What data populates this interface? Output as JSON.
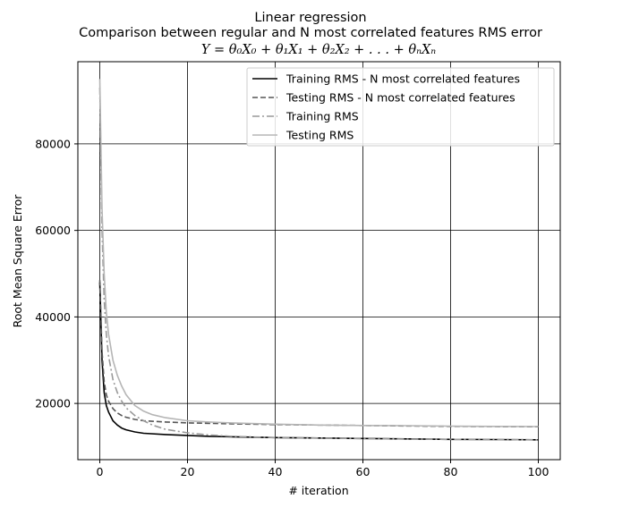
{
  "chart_data": {
    "type": "line",
    "title": "Linear regression",
    "subtitle": "Comparison between regular and N most correlated features RMS error",
    "equation": "Y = θ₀X₀ + θ₁X₁ + θ₂X₂ + . . . + θₙXₙ",
    "xlabel": "# iteration",
    "ylabel": "Root Mean Square Error",
    "xlim": [
      -5,
      105
    ],
    "ylim": [
      7000,
      99000
    ],
    "xticks": [
      0,
      20,
      40,
      60,
      80,
      100
    ],
    "yticks": [
      20000,
      40000,
      60000,
      80000
    ],
    "grid": true,
    "legend_position": "top-right",
    "series": [
      {
        "name": "Training RMS - N most correlated features",
        "color": "#000000",
        "dash": "solid",
        "x": [
          0,
          0.5,
          1,
          1.5,
          2,
          3,
          4,
          5,
          6,
          8,
          10,
          15,
          20,
          25,
          30,
          40,
          50,
          60,
          70,
          80,
          90,
          100
        ],
        "y": [
          48000,
          30000,
          22500,
          19500,
          18000,
          16000,
          15000,
          14300,
          13900,
          13400,
          13100,
          12800,
          12600,
          12400,
          12300,
          12100,
          12000,
          11900,
          11800,
          11700,
          11650,
          11600
        ]
      },
      {
        "name": "Testing RMS - N most correlated features",
        "color": "#555555",
        "dash": "dashed",
        "x": [
          0,
          0.5,
          1,
          1.5,
          2,
          3,
          4,
          5,
          6,
          8,
          10,
          15,
          20,
          25,
          30,
          40,
          50,
          60,
          70,
          80,
          90,
          100
        ],
        "y": [
          48500,
          32000,
          25000,
          22000,
          20500,
          18800,
          17800,
          17200,
          16800,
          16300,
          16000,
          15700,
          15500,
          15400,
          15300,
          15100,
          15000,
          14900,
          14800,
          14700,
          14650,
          14600
        ]
      },
      {
        "name": "Training RMS",
        "color": "#999999",
        "dash": "dashdot",
        "x": [
          0,
          0.5,
          1,
          1.5,
          2,
          3,
          4,
          5,
          6,
          8,
          10,
          12,
          15,
          20,
          25,
          30,
          40,
          50,
          60,
          70,
          80,
          90,
          100
        ],
        "y": [
          93000,
          60000,
          44000,
          36000,
          31000,
          25500,
          22500,
          20500,
          19000,
          17200,
          16000,
          15000,
          14000,
          13200,
          12700,
          12400,
          12100,
          12000,
          11850,
          11750,
          11700,
          11650,
          11600
        ]
      },
      {
        "name": "Testing RMS",
        "color": "#b5b5b5",
        "dash": "solid",
        "x": [
          0,
          0.5,
          1,
          1.5,
          2,
          3,
          4,
          5,
          6,
          8,
          10,
          12,
          15,
          20,
          25,
          30,
          40,
          50,
          60,
          70,
          80,
          90,
          100
        ],
        "y": [
          95000,
          65000,
          50000,
          41000,
          36000,
          30000,
          26500,
          24000,
          22000,
          19500,
          18200,
          17400,
          16700,
          16000,
          15700,
          15500,
          15200,
          15000,
          14900,
          14850,
          14750,
          14700,
          14650
        ]
      }
    ]
  }
}
